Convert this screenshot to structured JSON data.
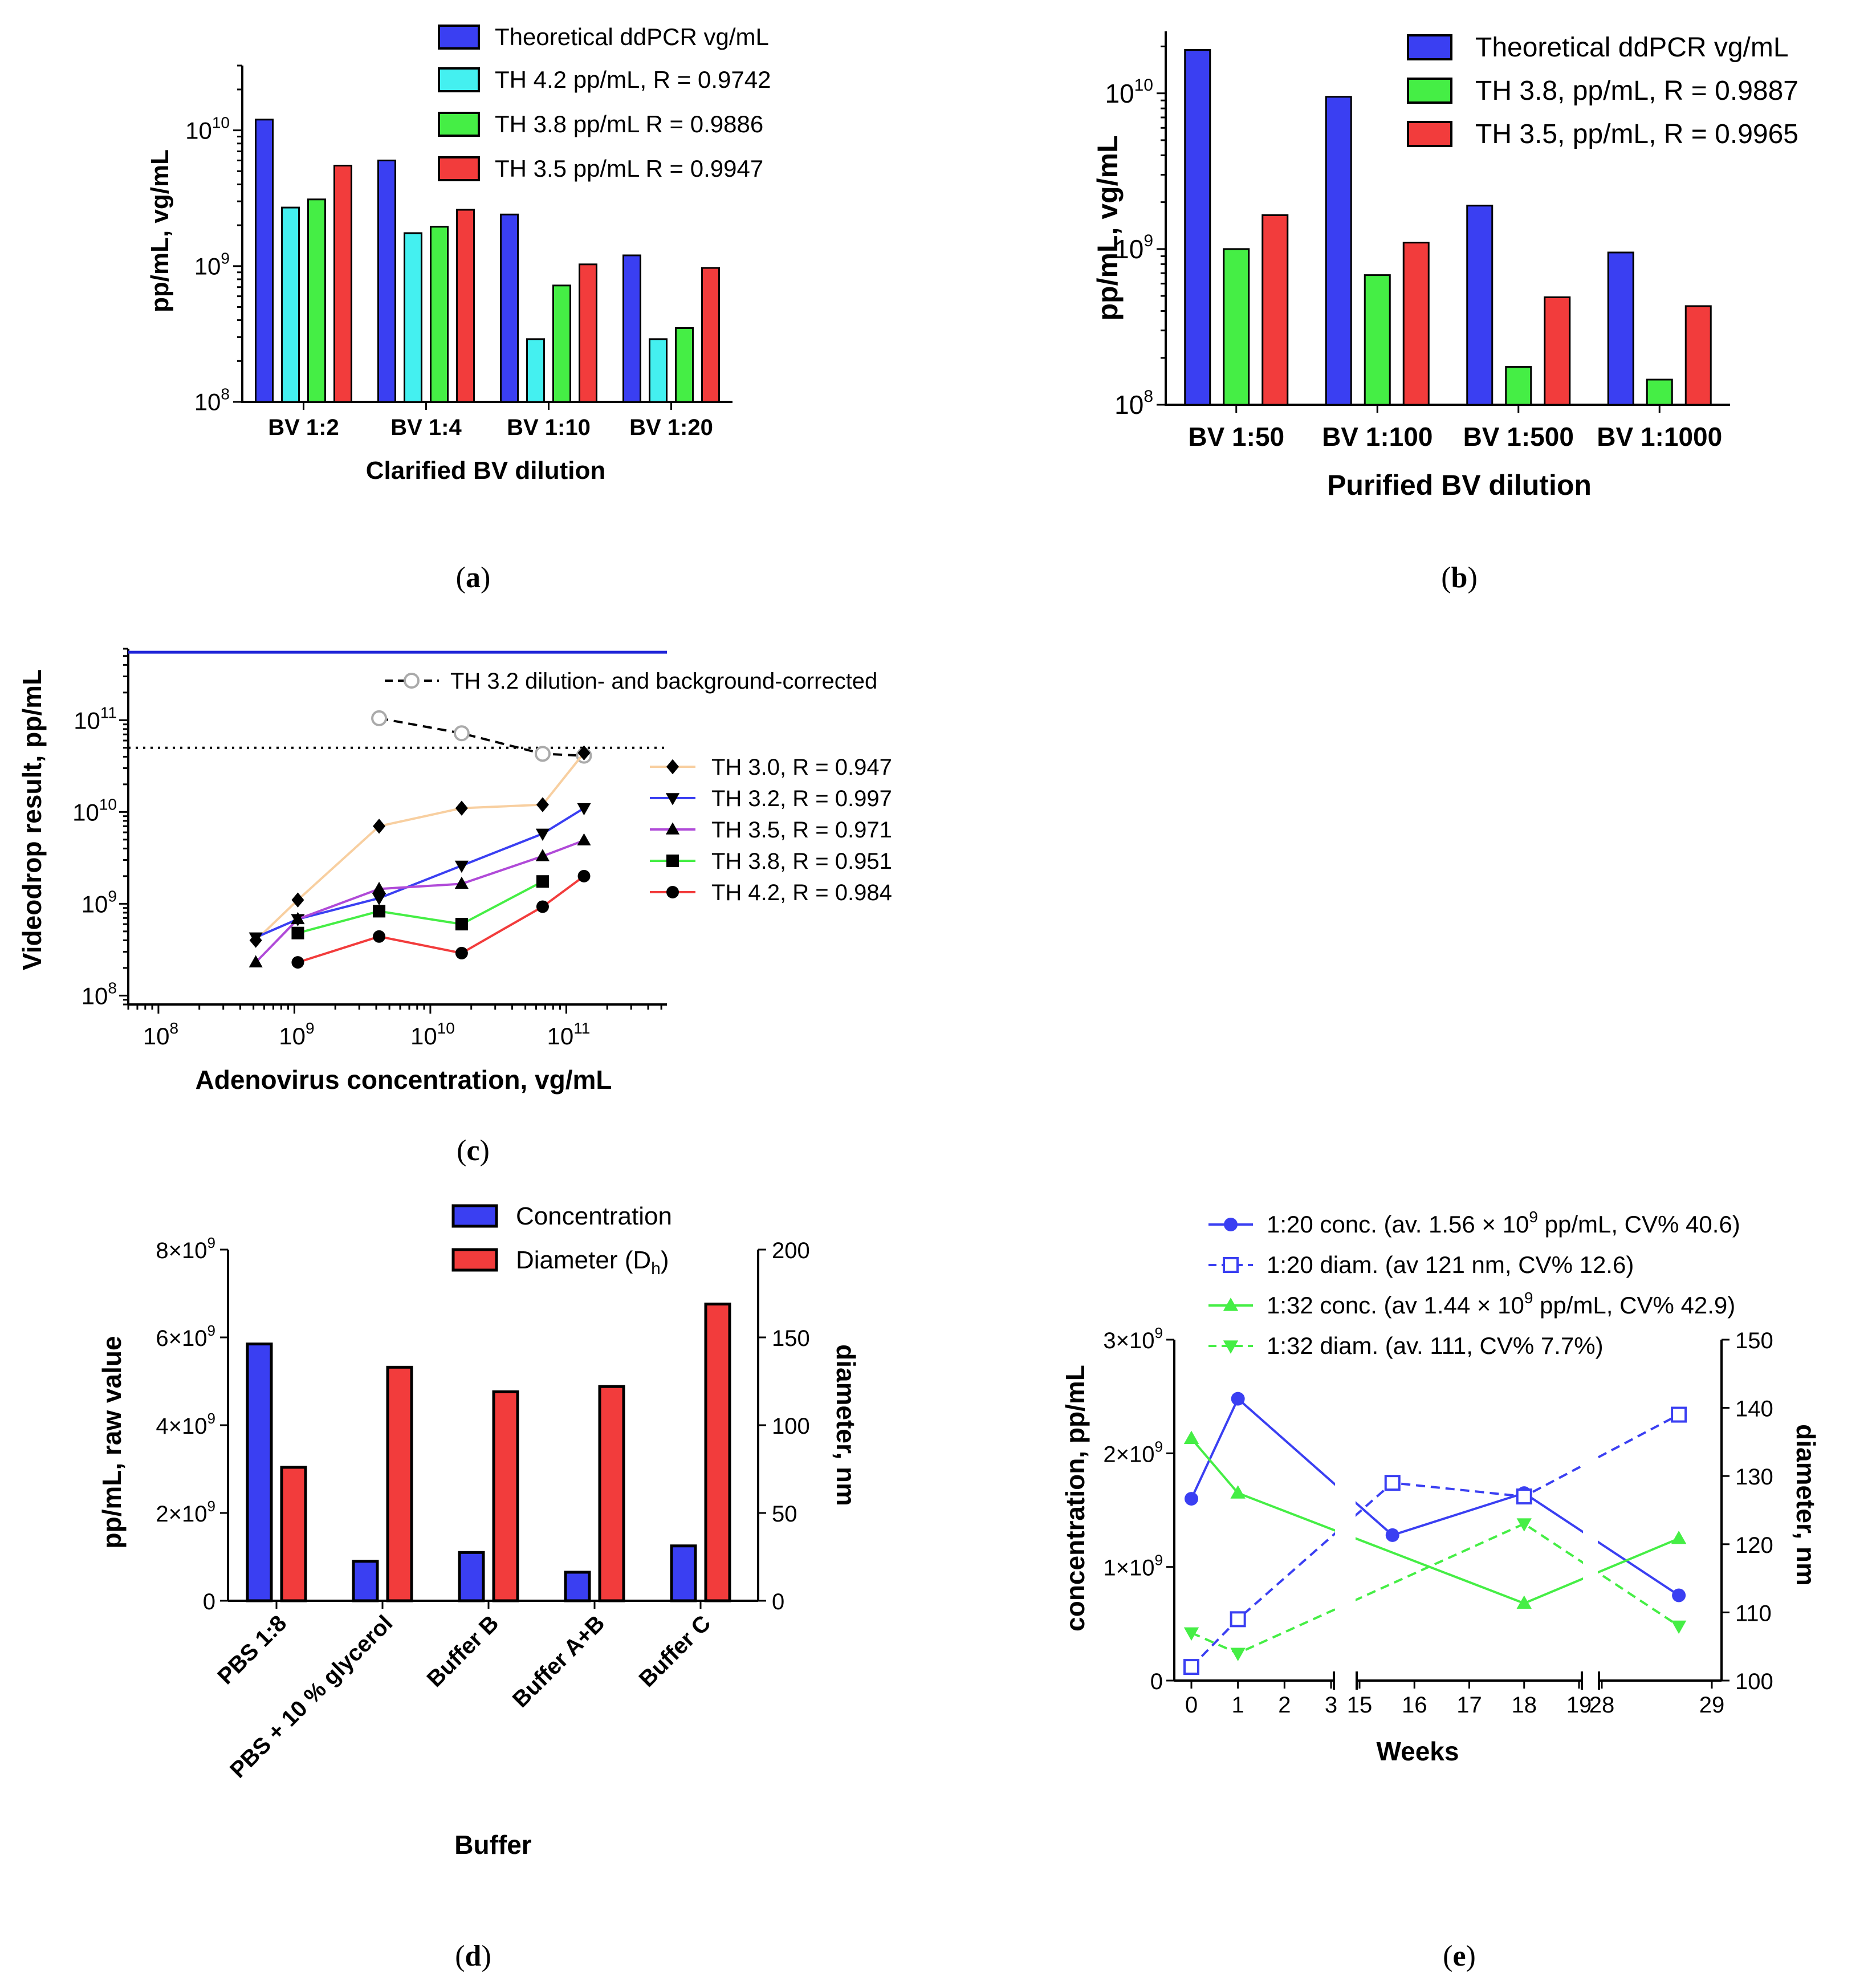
{
  "figure": {
    "colors": {
      "blue": "#3a3ff2",
      "cyan": "#44f0f0",
      "green": "#45ee45",
      "red": "#f23c3c",
      "tan": "#f8cfa0",
      "violet": "#b04ad8",
      "gray": "#aaaaaa",
      "black": "#000000"
    }
  },
  "chart_data": [
    {
      "id": "a",
      "caption_letter": "a",
      "type": "bar",
      "yscale": "log",
      "ylim": [
        100000000,
        30000000000
      ],
      "yticks": [
        {
          "exp": "8"
        },
        {
          "exp": "9"
        },
        {
          "exp": "10"
        }
      ],
      "ylabel": "pp/mL, vg/mL",
      "xlabel": "Clarified BV dilution",
      "categories": [
        "BV 1:2",
        "BV 1:4",
        "BV 1:10",
        "BV 1:20"
      ],
      "series": [
        {
          "name": "Theoretical ddPCR vg/mL",
          "color": "#3a3ff2",
          "values": [
            12000000000,
            6000000000,
            2400000000,
            1200000000
          ]
        },
        {
          "name": "TH 4.2 pp/mL, R = 0.9742",
          "color": "#44f0f0",
          "values": [
            2700000000,
            1750000000,
            290000000,
            290000000
          ]
        },
        {
          "name": "TH 3.8 pp/mL R = 0.9886",
          "color": "#45ee45",
          "values": [
            3100000000,
            1950000000,
            720000000,
            350000000
          ]
        },
        {
          "name": "TH 3.5 pp/mL R = 0.9947",
          "color": "#f23c3c",
          "values": [
            5500000000,
            2600000000,
            1030000000,
            970000000
          ]
        }
      ]
    },
    {
      "id": "b",
      "caption_letter": "b",
      "type": "bar",
      "yscale": "log",
      "ylim": [
        100000000,
        25000000000
      ],
      "yticks": [
        {
          "exp": "8"
        },
        {
          "exp": "9"
        },
        {
          "exp": "10"
        }
      ],
      "ylabel": "pp/mL, vg/mL",
      "xlabel": "Purified BV dilution",
      "categories": [
        "BV 1:50",
        "BV 1:100",
        "BV 1:500",
        "BV 1:1000"
      ],
      "series": [
        {
          "name": "Theoretical ddPCR vg/mL",
          "color": "#3a3ff2",
          "values": [
            19000000000,
            9500000000,
            1900000000,
            950000000
          ]
        },
        {
          "name": "TH 3.8, pp/mL, R = 0.9887",
          "color": "#45ee45",
          "values": [
            1000000000,
            680000000,
            175000000,
            145000000
          ]
        },
        {
          "name": "TH 3.5, pp/mL, R = 0.9965",
          "color": "#f23c3c",
          "values": [
            1650000000,
            1100000000,
            490000000,
            430000000
          ]
        }
      ]
    },
    {
      "id": "c",
      "caption_letter": "c",
      "type": "scatter",
      "xscale": "log",
      "yscale": "log",
      "xlim": [
        60000000,
        550000000000
      ],
      "ylim": [
        80000000,
        600000000000
      ],
      "xticks": [
        {
          "exp": "8"
        },
        {
          "exp": "9"
        },
        {
          "exp": "10"
        },
        {
          "exp": "11"
        }
      ],
      "yticks": [
        {
          "exp": "8"
        },
        {
          "exp": "9"
        },
        {
          "exp": "10"
        },
        {
          "exp": "11"
        }
      ],
      "xlabel": "Adenovirus concentration, vg/mL",
      "ylabel": "Videodrop result, pp/mL",
      "upper_limit_y": 550000000000,
      "reference_line_y": 50000000000,
      "series": [
        {
          "name": "TH 3.2 dilution- and background-corrected",
          "color": "#000000",
          "marker": "open-circle",
          "dashed": true,
          "x": [
            4200000000,
            17000000000,
            67000000000,
            135000000000
          ],
          "y": [
            105000000000,
            72000000000,
            43000000000,
            41000000000
          ]
        },
        {
          "name": "TH 3.0, R = 0.947",
          "color": "#f8cfa0",
          "marker": "diamond",
          "x": [
            520000000,
            1060000000,
            4200000000,
            17000000000,
            67000000000,
            135000000000
          ],
          "y": [
            400000000,
            1100000000,
            7000000000,
            11000000000,
            12000000000,
            44000000000
          ]
        },
        {
          "name": "TH 3.2, R = 0.997",
          "color": "#3a3ff2",
          "marker": "triangle-down",
          "x": [
            520000000,
            1060000000,
            4200000000,
            17000000000,
            67000000000,
            135000000000
          ],
          "y": [
            430000000,
            680000000,
            1150000000,
            2600000000,
            5800000000,
            11000000000
          ]
        },
        {
          "name": "TH 3.5, R = 0.971",
          "color": "#b04ad8",
          "marker": "triangle-up",
          "x": [
            520000000,
            1060000000,
            4200000000,
            17000000000,
            67000000000,
            135000000000
          ],
          "y": [
            230000000,
            680000000,
            1450000000,
            1650000000,
            3300000000,
            4900000000
          ]
        },
        {
          "name": "TH 3.8, R = 0.951",
          "color": "#45ee45",
          "marker": "square",
          "x": [
            1060000000,
            4200000000,
            17000000000,
            67000000000
          ],
          "y": [
            480000000,
            830000000,
            600000000,
            1750000000
          ]
        },
        {
          "name": "TH 4.2, R = 0.984",
          "color": "#f23c3c",
          "marker": "circle",
          "x": [
            1060000000,
            4200000000,
            17000000000,
            67000000000,
            135000000000
          ],
          "y": [
            230000000,
            440000000,
            290000000,
            930000000,
            2000000000
          ]
        }
      ]
    },
    {
      "id": "d",
      "caption_letter": "d",
      "type": "bar",
      "ylim": [
        0,
        8000000000
      ],
      "ylim_right": [
        0,
        200
      ],
      "yticks_left": [
        "0",
        "2×10",
        "4×10",
        "6×10",
        "8×10"
      ],
      "ytick_left_exp": "9",
      "yticks_right": [
        "0",
        "50",
        "100",
        "150",
        "200"
      ],
      "ylabel": "pp/mL, raw value",
      "ylabel_right": "diameter, nm",
      "xlabel": "Buffer",
      "categories": [
        "PBS 1:8",
        "PBS + 10 % glycerol",
        "Buffer B",
        "Buffer A+B",
        "Buffer C"
      ],
      "series": [
        {
          "name": "Concentration",
          "axis": "left",
          "color": "#3a3ff2",
          "values": [
            5850000000,
            900000000,
            1100000000,
            650000000,
            1250000000
          ]
        },
        {
          "name": "Diameter (D",
          "name_sub": "h",
          "name_end": ")",
          "axis": "right",
          "color": "#f23c3c",
          "values": [
            76,
            133,
            119,
            122,
            169
          ]
        }
      ]
    },
    {
      "id": "e",
      "caption_letter": "e",
      "type": "line",
      "xlabel": "Weeks",
      "ylabel": "concentration, pp/mL",
      "ylabel_right": "diameter, nm",
      "ylim": [
        0,
        3000000000
      ],
      "ylim_right": [
        100,
        150
      ],
      "yticks_left": [
        "0",
        "1×10",
        "2×10",
        "3×10"
      ],
      "ytick_left_exp": "9",
      "yticks_right": [
        "100",
        "110",
        "120",
        "130",
        "140",
        "150"
      ],
      "x_segments": [
        {
          "range": [
            0,
            3
          ],
          "ticks": [
            "0",
            "1",
            "2",
            "3"
          ]
        },
        {
          "range": [
            15,
            19
          ],
          "ticks": [
            "15",
            "16",
            "17",
            "18",
            "19"
          ]
        },
        {
          "range": [
            28,
            29
          ],
          "ticks": [
            "28",
            "29"
          ]
        }
      ],
      "series": [
        {
          "name": "1:20 conc. (av. 1.56 × 10",
          "name_sup": "9",
          "name_end": " pp/mL, CV% 40.6)",
          "axis": "left",
          "color": "#3a3ff2",
          "marker": "circle",
          "dashed": false,
          "x": [
            0,
            1,
            15.6,
            18,
            28.7
          ],
          "y": [
            1600000000,
            2480000000,
            1280000000,
            1650000000,
            750000000
          ]
        },
        {
          "name": "1:20 diam. (av 121 nm, CV% 12.6)",
          "axis": "right",
          "color": "#3a3ff2",
          "marker": "open-square",
          "dashed": true,
          "x": [
            0,
            1,
            15.6,
            18,
            28.7
          ],
          "y": [
            102,
            109,
            129,
            127,
            139
          ]
        },
        {
          "name": "1:32 conc. (av 1.44 × 10",
          "name_sup": "9",
          "name_end": " pp/mL, CV% 42.9)",
          "axis": "left",
          "color": "#45ee45",
          "marker": "triangle-up",
          "dashed": false,
          "x": [
            0,
            1,
            18,
            28.7
          ],
          "y": [
            2130000000,
            1650000000,
            680000000,
            1250000000
          ]
        },
        {
          "name": "1:32 diam.  (av. 111, CV% 7.7%)",
          "axis": "right",
          "color": "#45ee45",
          "marker": "triangle-down",
          "dashed": true,
          "x": [
            0,
            1,
            18,
            28.7
          ],
          "y": [
            107,
            104,
            123,
            108
          ]
        }
      ]
    }
  ]
}
